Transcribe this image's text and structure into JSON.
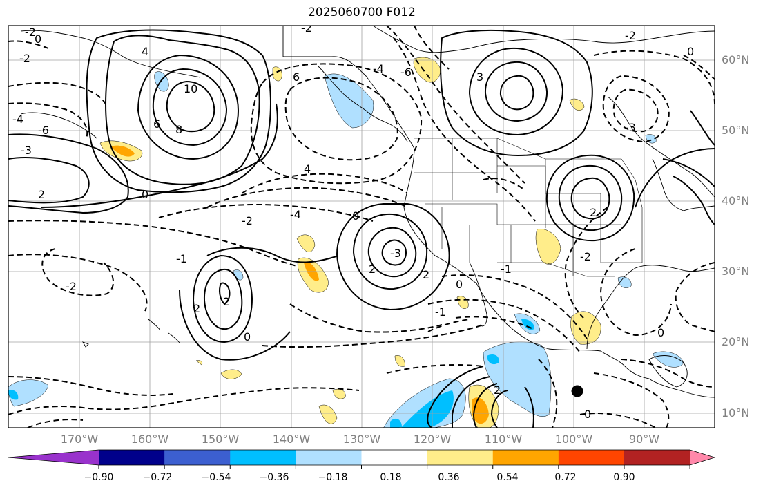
{
  "title": "2025060700 F012",
  "lat_labels": [
    "60°N",
    "50°N",
    "40°N",
    "30°N",
    "20°N",
    "10°N"
  ],
  "lon_labels": [
    "170°W",
    "160°W",
    "150°W",
    "140°W",
    "130°W",
    "120°W",
    "110°W",
    "100°W",
    "90°W"
  ],
  "contour_labels": [
    "-2",
    "0",
    "-2",
    "2",
    "4",
    "6",
    "8",
    "10",
    "-4",
    "-6",
    "-3",
    "-2",
    "4",
    "6",
    "-4",
    "-6",
    "0",
    "-2",
    "2",
    "-4",
    "2",
    "-3",
    "0",
    "2",
    "3",
    "-1",
    "2",
    "0",
    "-2",
    "0",
    "2",
    "-2",
    "0",
    "2",
    "-2",
    "-3",
    "-1",
    "0",
    "-1",
    "0"
  ],
  "colorbar": {
    "tick_labels": [
      "−0.90",
      "−0.72",
      "−0.54",
      "−0.36",
      "−0.18",
      "0.18",
      "0.36",
      "0.54",
      "0.72",
      "0.90"
    ],
    "colors": [
      "#9932cc",
      "#00008b",
      "#3c5fd0",
      "#00bfff",
      "#b0e0ff",
      "#ffffff",
      "#ffed8a",
      "#ffa500",
      "#ff4500",
      "#b22222",
      "#ff88aa"
    ]
  },
  "shade_colors": {
    "light_blue": "#b0e0ff",
    "blue": "#00bfff",
    "light_yellow": "#ffed8a",
    "orange": "#ffa500"
  }
}
